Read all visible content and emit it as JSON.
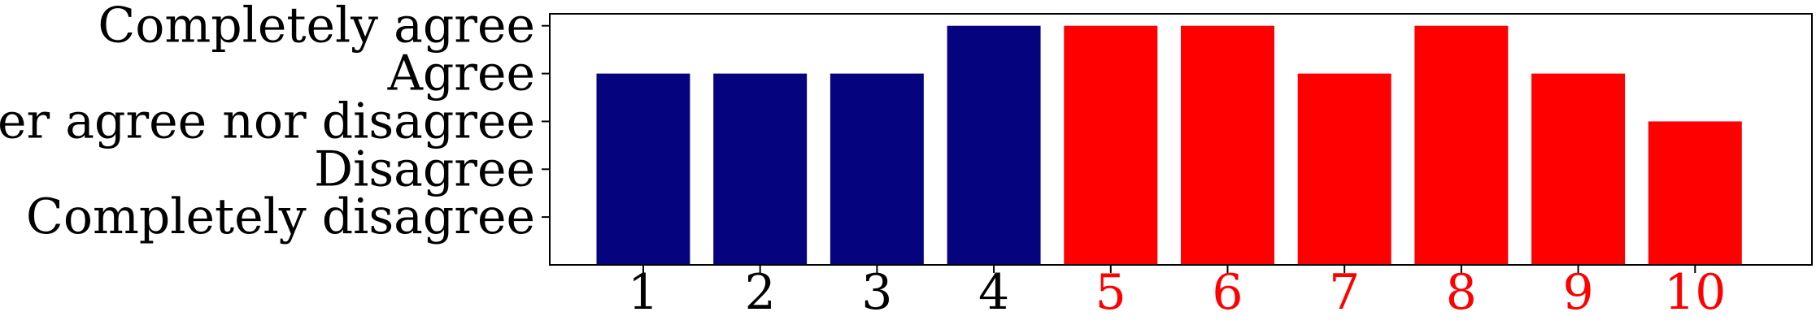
{
  "chart_data": {
    "type": "bar",
    "title": "",
    "xlabel": "",
    "ylabel": "",
    "categories": [
      "1",
      "2",
      "3",
      "4",
      "5",
      "6",
      "7",
      "8",
      "9",
      "10"
    ],
    "values": [
      4,
      4,
      4,
      5,
      5,
      5,
      4,
      5,
      4,
      3
    ],
    "bar_colors": [
      "#06037f",
      "#06037f",
      "#06037f",
      "#06037f",
      "#ff0000",
      "#ff0000",
      "#ff0000",
      "#ff0000",
      "#ff0000",
      "#ff0000"
    ],
    "xtick_label_colors": [
      "#000000",
      "#000000",
      "#000000",
      "#000000",
      "#ff0000",
      "#ff0000",
      "#ff0000",
      "#ff0000",
      "#ff0000",
      "#ff0000"
    ],
    "y_ticks": [
      {
        "value": 1,
        "label": "Completely disagree"
      },
      {
        "value": 2,
        "label": "Disagree"
      },
      {
        "value": 3,
        "label": "Neither agree nor disagree"
      },
      {
        "value": 4,
        "label": "Agree"
      },
      {
        "value": 5,
        "label": "Completely agree"
      }
    ],
    "ylim": [
      0,
      5.25
    ],
    "xlim": [
      0.2,
      11.0
    ],
    "grid": false,
    "legend": "none"
  }
}
